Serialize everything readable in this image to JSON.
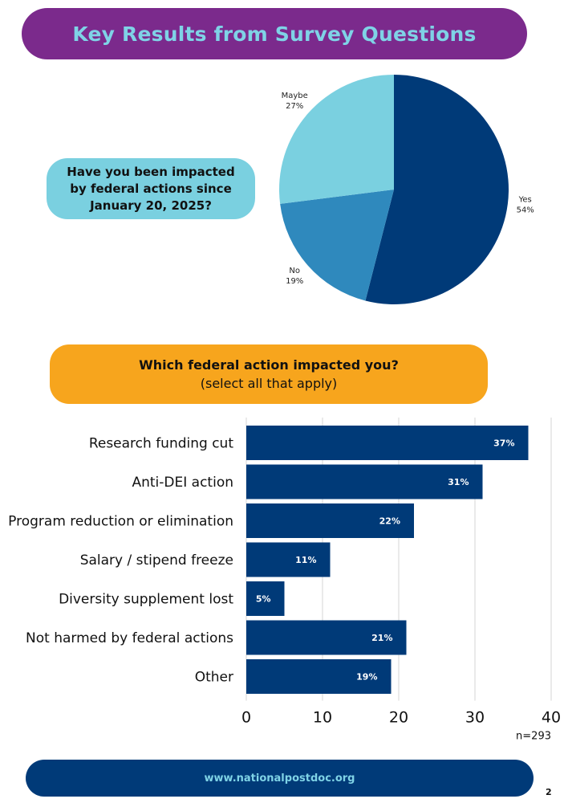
{
  "header": {
    "title": "Key Results from Survey Questions"
  },
  "question1": {
    "text": "Have you been impacted by federal actions since January 20, 2025?"
  },
  "question2": {
    "title": "Which federal action impacted you?",
    "subtitle": "(select all that apply)"
  },
  "chart_data": [
    {
      "type": "pie",
      "categories": [
        "Yes",
        "No",
        "Maybe"
      ],
      "values": [
        54,
        19,
        27
      ],
      "value_labels": [
        "54%",
        "19%",
        "27%"
      ],
      "colors": [
        "#003a78",
        "#2f89bd",
        "#7ad0e0"
      ]
    },
    {
      "type": "bar",
      "orientation": "horizontal",
      "categories": [
        "Research funding cut",
        "Anti-DEI action",
        "Program reduction or elimination",
        "Salary / stipend freeze",
        "Diversity supplement lost",
        "Not harmed by federal actions",
        "Other"
      ],
      "values": [
        37,
        31,
        22,
        11,
        5,
        21,
        19
      ],
      "value_labels": [
        "37%",
        "31%",
        "22%",
        "11%",
        "5%",
        "21%",
        "19%"
      ],
      "xlim": [
        0,
        40
      ],
      "xticks": [
        "0",
        "10",
        "20",
        "30",
        "40"
      ],
      "grid": true,
      "bar_color": "#003a78",
      "note": "n=293"
    }
  ],
  "footer": {
    "url": "www.nationalpostdoc.org",
    "page_number": "2"
  }
}
